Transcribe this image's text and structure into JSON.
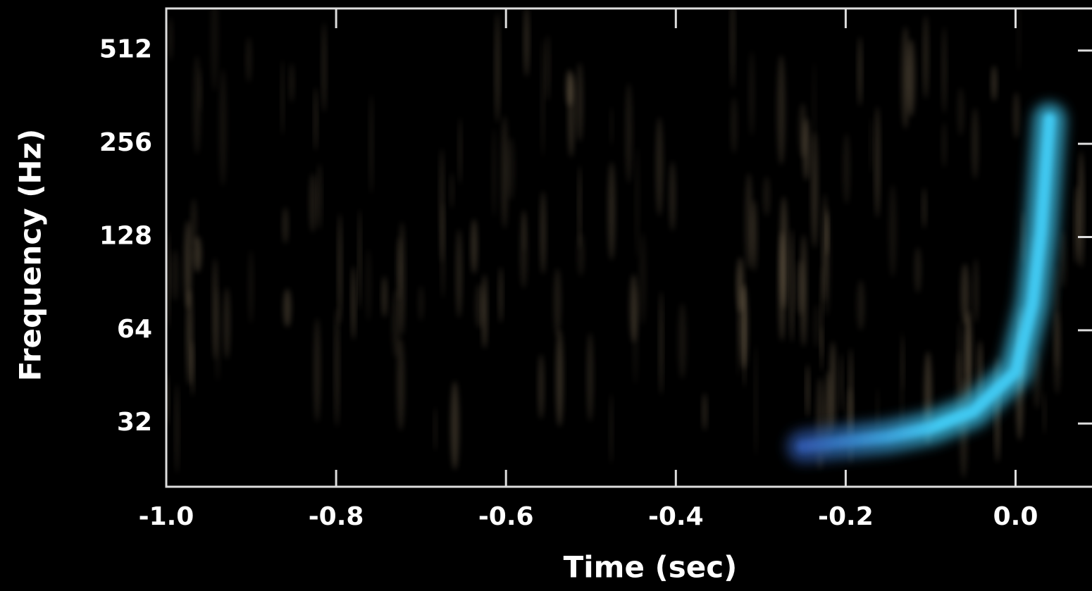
{
  "chart_data": {
    "type": "spectrogram",
    "xlabel": "Time (sec)",
    "ylabel": "Frequency (Hz)",
    "xlim": [
      -1.0,
      0.09
    ],
    "xticks": [
      {
        "value": -1,
        "label": "-1.0"
      },
      -0.8,
      -0.6,
      -0.4,
      -0.2,
      {
        "value": 0,
        "label": "0.0"
      }
    ],
    "ylim": [
      20,
      700
    ],
    "yticks": [
      32,
      64,
      128,
      256,
      512
    ],
    "log_y": true,
    "x": [
      -0.25,
      -0.2,
      -0.15,
      -0.1,
      -0.05,
      0.0,
      0.02,
      0.03,
      0.04
    ],
    "values": [
      27,
      28,
      29,
      31,
      35,
      47,
      78,
      133,
      307
    ],
    "colors": [
      "#2f56a8",
      "#40c8f0"
    ]
  }
}
